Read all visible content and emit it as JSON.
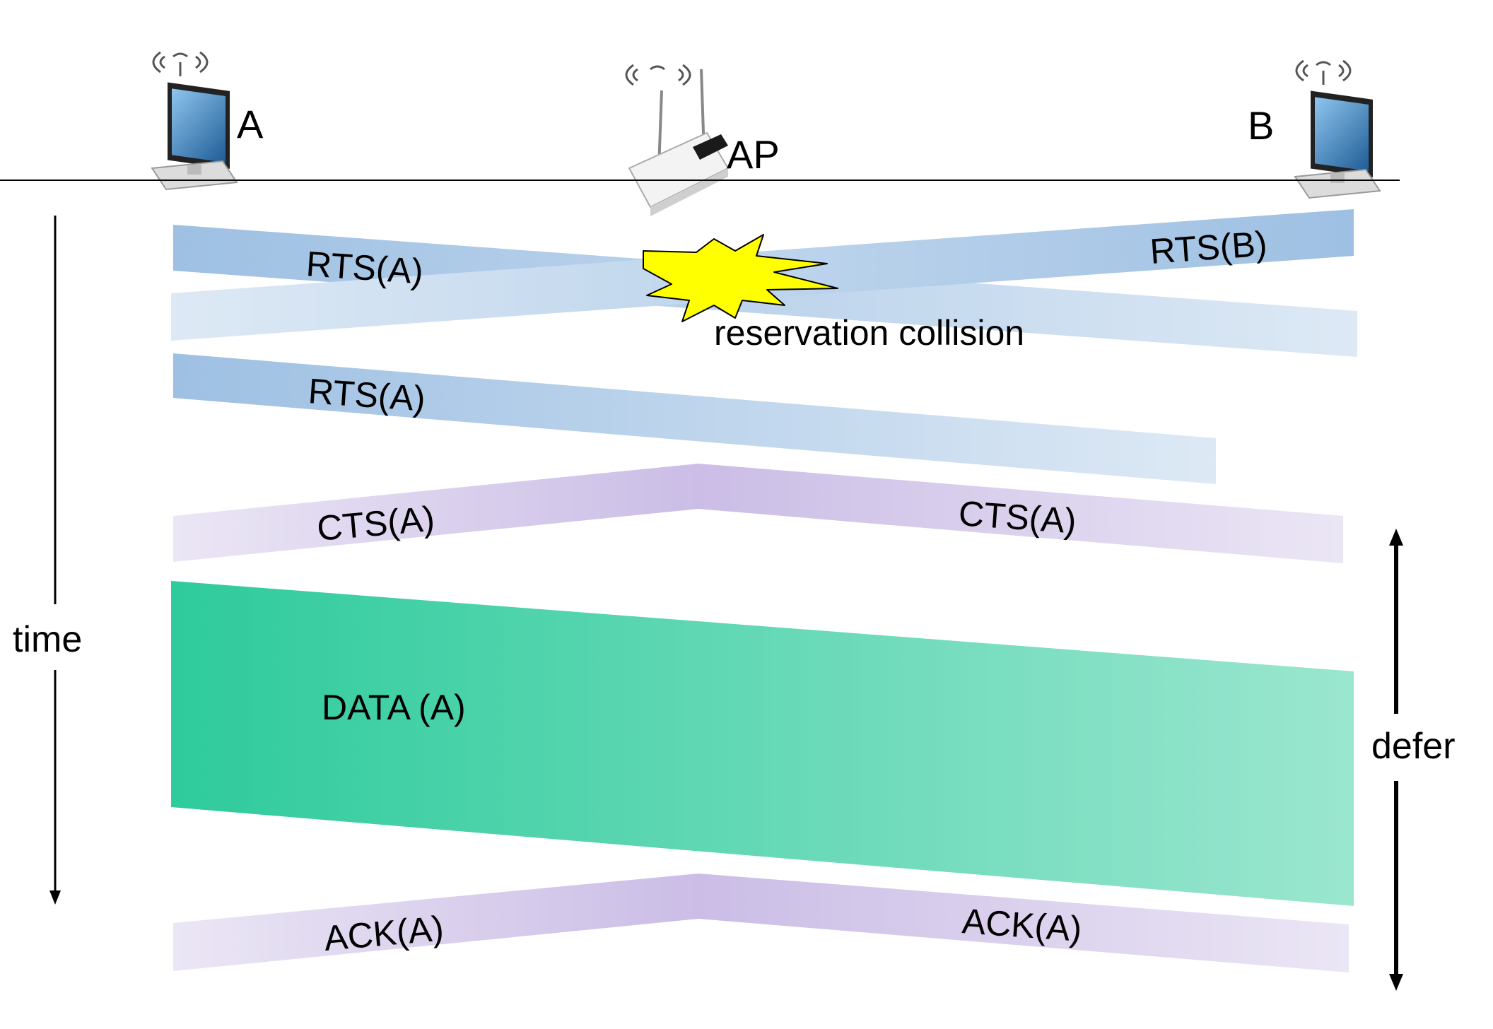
{
  "nodes": {
    "a": {
      "label": "A"
    },
    "ap": {
      "label": "AP"
    },
    "b": {
      "label": "B"
    }
  },
  "axis": {
    "time_label": "time",
    "defer_label": "defer"
  },
  "messages": {
    "rts_a_1": "RTS(A)",
    "rts_b": "RTS(B)",
    "collision": "reservation collision",
    "rts_a_2": "RTS(A)",
    "cts_left": "CTS(A)",
    "cts_right": "CTS(A)",
    "data": "DATA (A)",
    "ack_left": "ACK(A)",
    "ack_right": "ACK(A)"
  },
  "colors": {
    "rts": "#9ec0e3",
    "rts_light": "#dde9f5",
    "cts": "#cbbde6",
    "cts_light": "#e9e4f4",
    "data_dark": "#2ecb9c",
    "data_light": "#9be6cf",
    "burst": "#ffff00"
  }
}
